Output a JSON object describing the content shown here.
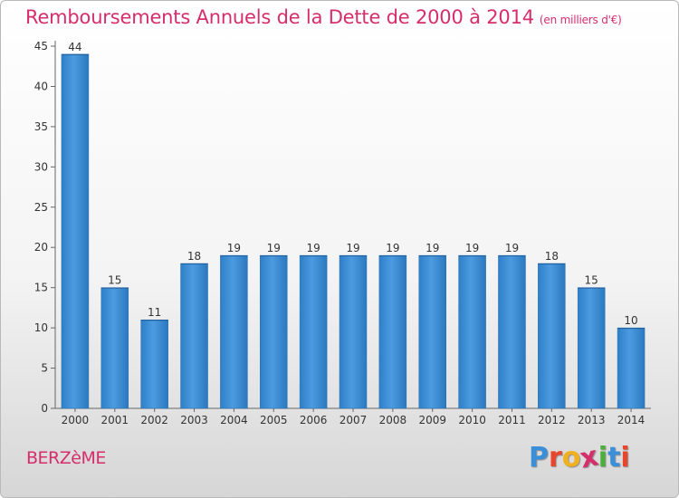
{
  "header": {
    "title": "Remboursements Annuels de la Dette de 2000 à 2014",
    "unit": "(en milliers d'€)"
  },
  "footer": {
    "commune": "BERZèME",
    "brand_letters": [
      "P",
      "r",
      "o",
      "x",
      "i",
      "t",
      "i"
    ],
    "brand_colors": [
      "#3b8fd9",
      "#e8452c",
      "#f2b01e",
      "#d62d6b",
      "#4cae3b",
      "#3b8fd9",
      "#e8452c"
    ]
  },
  "colors": {
    "bar": "#3e8fd6",
    "bar_dark": "#2a74b8",
    "axis": "#555555",
    "accent": "#d62d6b"
  },
  "chart_data": {
    "type": "bar",
    "title": "Remboursements Annuels de la Dette de 2000 à 2014",
    "subtitle": "(en milliers d'€)",
    "categories": [
      "2000",
      "2001",
      "2002",
      "2003",
      "2004",
      "2005",
      "2006",
      "2007",
      "2008",
      "2009",
      "2010",
      "2011",
      "2012",
      "2013",
      "2014"
    ],
    "values": [
      44,
      15,
      11,
      18,
      19,
      19,
      19,
      19,
      19,
      19,
      19,
      19,
      18,
      15,
      10
    ],
    "data_labels": [
      "44",
      "15",
      "11",
      "18",
      "19",
      "19",
      "19",
      "19",
      "19",
      "19",
      "19",
      "19",
      "18",
      "15",
      "10"
    ],
    "yticks": [
      0,
      5,
      10,
      15,
      20,
      25,
      30,
      35,
      40,
      45
    ],
    "ylim": [
      0,
      45
    ],
    "xlabel": "",
    "ylabel": "",
    "grid": false,
    "legend": "none"
  }
}
